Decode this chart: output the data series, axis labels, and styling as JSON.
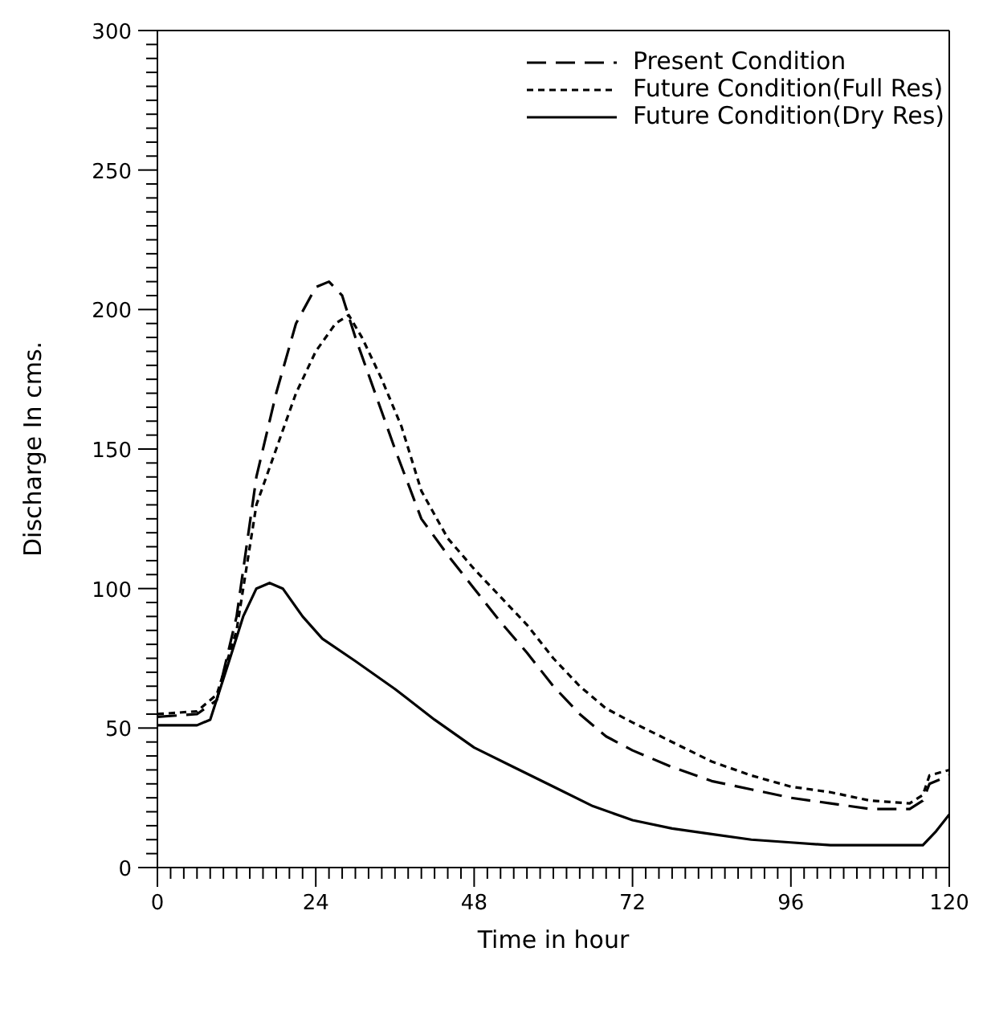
{
  "chart_data": {
    "type": "line",
    "xlabel": "Time in hour",
    "ylabel": "Discharge In cms.",
    "xlim": [
      0,
      120
    ],
    "ylim": [
      0,
      300
    ],
    "xticks": [
      0,
      {
        "value": 2,
        "label": null
      },
      {
        "value": 4,
        "label": null
      },
      {
        "value": 6,
        "label": null
      },
      {
        "value": 8,
        "label": null
      },
      {
        "value": 10,
        "label": null
      },
      {
        "value": 12,
        "label": null
      },
      {
        "value": 14,
        "label": null
      },
      {
        "value": 16,
        "label": null
      },
      {
        "value": 18,
        "label": null
      },
      {
        "value": 20,
        "label": null
      },
      {
        "value": 22,
        "label": null
      },
      24,
      {
        "value": 26,
        "label": null
      },
      {
        "value": 28,
        "label": null
      },
      {
        "value": 30,
        "label": null
      },
      {
        "value": 32,
        "label": null
      },
      {
        "value": 34,
        "label": null
      },
      {
        "value": 36,
        "label": null
      },
      {
        "value": 38,
        "label": null
      },
      {
        "value": 40,
        "label": null
      },
      {
        "value": 42,
        "label": null
      },
      {
        "value": 44,
        "label": null
      },
      {
        "value": 46,
        "label": null
      },
      48,
      {
        "value": 50,
        "label": null
      },
      {
        "value": 52,
        "label": null
      },
      {
        "value": 54,
        "label": null
      },
      {
        "value": 56,
        "label": null
      },
      {
        "value": 58,
        "label": null
      },
      {
        "value": 60,
        "label": null
      },
      {
        "value": 62,
        "label": null
      },
      {
        "value": 64,
        "label": null
      },
      {
        "value": 66,
        "label": null
      },
      {
        "value": 68,
        "label": null
      },
      {
        "value": 70,
        "label": null
      },
      72,
      {
        "value": 74,
        "label": null
      },
      {
        "value": 76,
        "label": null
      },
      {
        "value": 78,
        "label": null
      },
      {
        "value": 80,
        "label": null
      },
      {
        "value": 82,
        "label": null
      },
      {
        "value": 84,
        "label": null
      },
      {
        "value": 86,
        "label": null
      },
      {
        "value": 88,
        "label": null
      },
      {
        "value": 90,
        "label": null
      },
      {
        "value": 92,
        "label": null
      },
      {
        "value": 94,
        "label": null
      },
      96,
      {
        "value": 98,
        "label": null
      },
      {
        "value": 100,
        "label": null
      },
      {
        "value": 102,
        "label": null
      },
      {
        "value": 104,
        "label": null
      },
      {
        "value": 106,
        "label": null
      },
      {
        "value": 108,
        "label": null
      },
      {
        "value": 110,
        "label": null
      },
      {
        "value": 112,
        "label": null
      },
      {
        "value": 114,
        "label": null
      },
      {
        "value": 116,
        "label": null
      },
      {
        "value": 118,
        "label": null
      },
      120
    ],
    "yticks": [
      0,
      {
        "value": 5,
        "label": null
      },
      {
        "value": 10,
        "label": null
      },
      {
        "value": 15,
        "label": null
      },
      {
        "value": 20,
        "label": null
      },
      {
        "value": 25,
        "label": null
      },
      {
        "value": 30,
        "label": null
      },
      {
        "value": 35,
        "label": null
      },
      {
        "value": 40,
        "label": null
      },
      {
        "value": 45,
        "label": null
      },
      50,
      {
        "value": 55,
        "label": null
      },
      {
        "value": 60,
        "label": null
      },
      {
        "value": 65,
        "label": null
      },
      {
        "value": 70,
        "label": null
      },
      {
        "value": 75,
        "label": null
      },
      {
        "value": 80,
        "label": null
      },
      {
        "value": 85,
        "label": null
      },
      {
        "value": 90,
        "label": null
      },
      {
        "value": 95,
        "label": null
      },
      100,
      {
        "value": 105,
        "label": null
      },
      {
        "value": 110,
        "label": null
      },
      {
        "value": 115,
        "label": null
      },
      {
        "value": 120,
        "label": null
      },
      {
        "value": 125,
        "label": null
      },
      {
        "value": 130,
        "label": null
      },
      {
        "value": 135,
        "label": null
      },
      {
        "value": 140,
        "label": null
      },
      {
        "value": 145,
        "label": null
      },
      150,
      {
        "value": 155,
        "label": null
      },
      {
        "value": 160,
        "label": null
      },
      {
        "value": 165,
        "label": null
      },
      {
        "value": 170,
        "label": null
      },
      {
        "value": 175,
        "label": null
      },
      {
        "value": 180,
        "label": null
      },
      {
        "value": 185,
        "label": null
      },
      {
        "value": 190,
        "label": null
      },
      {
        "value": 195,
        "label": null
      },
      200,
      {
        "value": 205,
        "label": null
      },
      {
        "value": 210,
        "label": null
      },
      {
        "value": 215,
        "label": null
      },
      {
        "value": 220,
        "label": null
      },
      {
        "value": 225,
        "label": null
      },
      {
        "value": 230,
        "label": null
      },
      {
        "value": 235,
        "label": null
      },
      {
        "value": 240,
        "label": null
      },
      {
        "value": 245,
        "label": null
      },
      250,
      {
        "value": 255,
        "label": null
      },
      {
        "value": 260,
        "label": null
      },
      {
        "value": 265,
        "label": null
      },
      {
        "value": 270,
        "label": null
      },
      {
        "value": 275,
        "label": null
      },
      {
        "value": 280,
        "label": null
      },
      {
        "value": 285,
        "label": null
      },
      {
        "value": 290,
        "label": null
      },
      {
        "value": 295,
        "label": null
      },
      300
    ],
    "grid": false,
    "legend": "top right",
    "marker": "none",
    "series": [
      {
        "name": "Present Condition",
        "color": "#000000",
        "line_style": "dashed",
        "x": [
          0,
          6,
          9,
          12,
          15,
          18,
          21,
          24,
          26,
          28,
          30,
          33,
          36,
          40,
          44,
          48,
          52,
          56,
          60,
          64,
          68,
          72,
          78,
          84,
          90,
          96,
          102,
          108,
          114,
          116,
          117,
          120
        ],
        "values": [
          54,
          55,
          60,
          90,
          140,
          170,
          195,
          208,
          210,
          205,
          190,
          170,
          150,
          125,
          112,
          100,
          88,
          77,
          65,
          55,
          47,
          42,
          36,
          31,
          28,
          25,
          23,
          21,
          21,
          24,
          30,
          33
        ]
      },
      {
        "name": "Future Condition(Full Res)",
        "color": "#000000",
        "line_style": "dotted",
        "x": [
          0,
          6,
          9,
          12,
          15,
          18,
          21,
          24,
          27,
          29,
          31,
          34,
          37,
          40,
          44,
          48,
          52,
          56,
          60,
          64,
          68,
          72,
          78,
          84,
          90,
          96,
          102,
          108,
          114,
          116,
          117,
          120
        ],
        "values": [
          55,
          56,
          62,
          85,
          130,
          150,
          170,
          185,
          195,
          198,
          190,
          175,
          158,
          135,
          118,
          107,
          97,
          87,
          75,
          65,
          57,
          52,
          45,
          38,
          33,
          29,
          27,
          24,
          23,
          26,
          33,
          35
        ]
      },
      {
        "name": "Future Condition(Dry Res)",
        "color": "#000000",
        "line_style": "solid",
        "x": [
          0,
          6,
          8,
          11,
          13,
          15,
          17,
          19,
          22,
          25,
          30,
          36,
          42,
          48,
          54,
          60,
          66,
          72,
          78,
          84,
          90,
          96,
          102,
          108,
          114,
          116,
          118,
          120
        ],
        "values": [
          51,
          51,
          53,
          75,
          90,
          100,
          102,
          100,
          90,
          82,
          74,
          64,
          53,
          43,
          36,
          29,
          22,
          17,
          14,
          12,
          10,
          9,
          8,
          8,
          8,
          8,
          13,
          19
        ]
      }
    ]
  }
}
